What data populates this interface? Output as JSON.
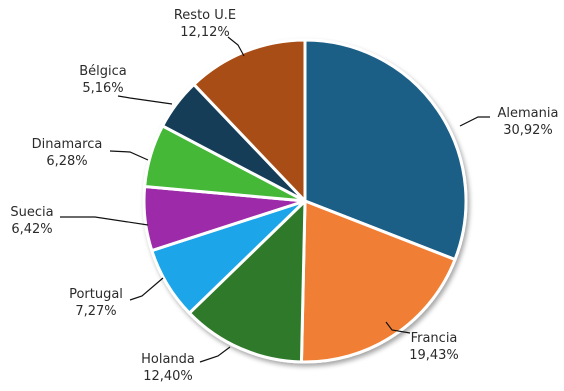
{
  "chart_data": {
    "type": "pie",
    "categories": [
      "Alemania",
      "Francia",
      "Holanda",
      "Portugal",
      "Suecia",
      "Dinamarca",
      "Bélgica",
      "Resto U.E"
    ],
    "values": [
      30.92,
      19.43,
      12.4,
      7.27,
      6.42,
      6.28,
      5.16,
      12.12
    ],
    "value_labels": [
      "30,92%",
      "19,43%",
      "12,40%",
      "7,27%",
      "6,42%",
      "6,28%",
      "5,16%",
      "12,12%"
    ],
    "colors": [
      "#1f5f86",
      "#f07f34",
      "#2f7a2a",
      "#1aa5e8",
      "#9c29a9",
      "#44b838",
      "#123e58",
      "#a84d12"
    ],
    "start_angle_deg": 0,
    "direction": "clockwise",
    "legend": "none"
  }
}
